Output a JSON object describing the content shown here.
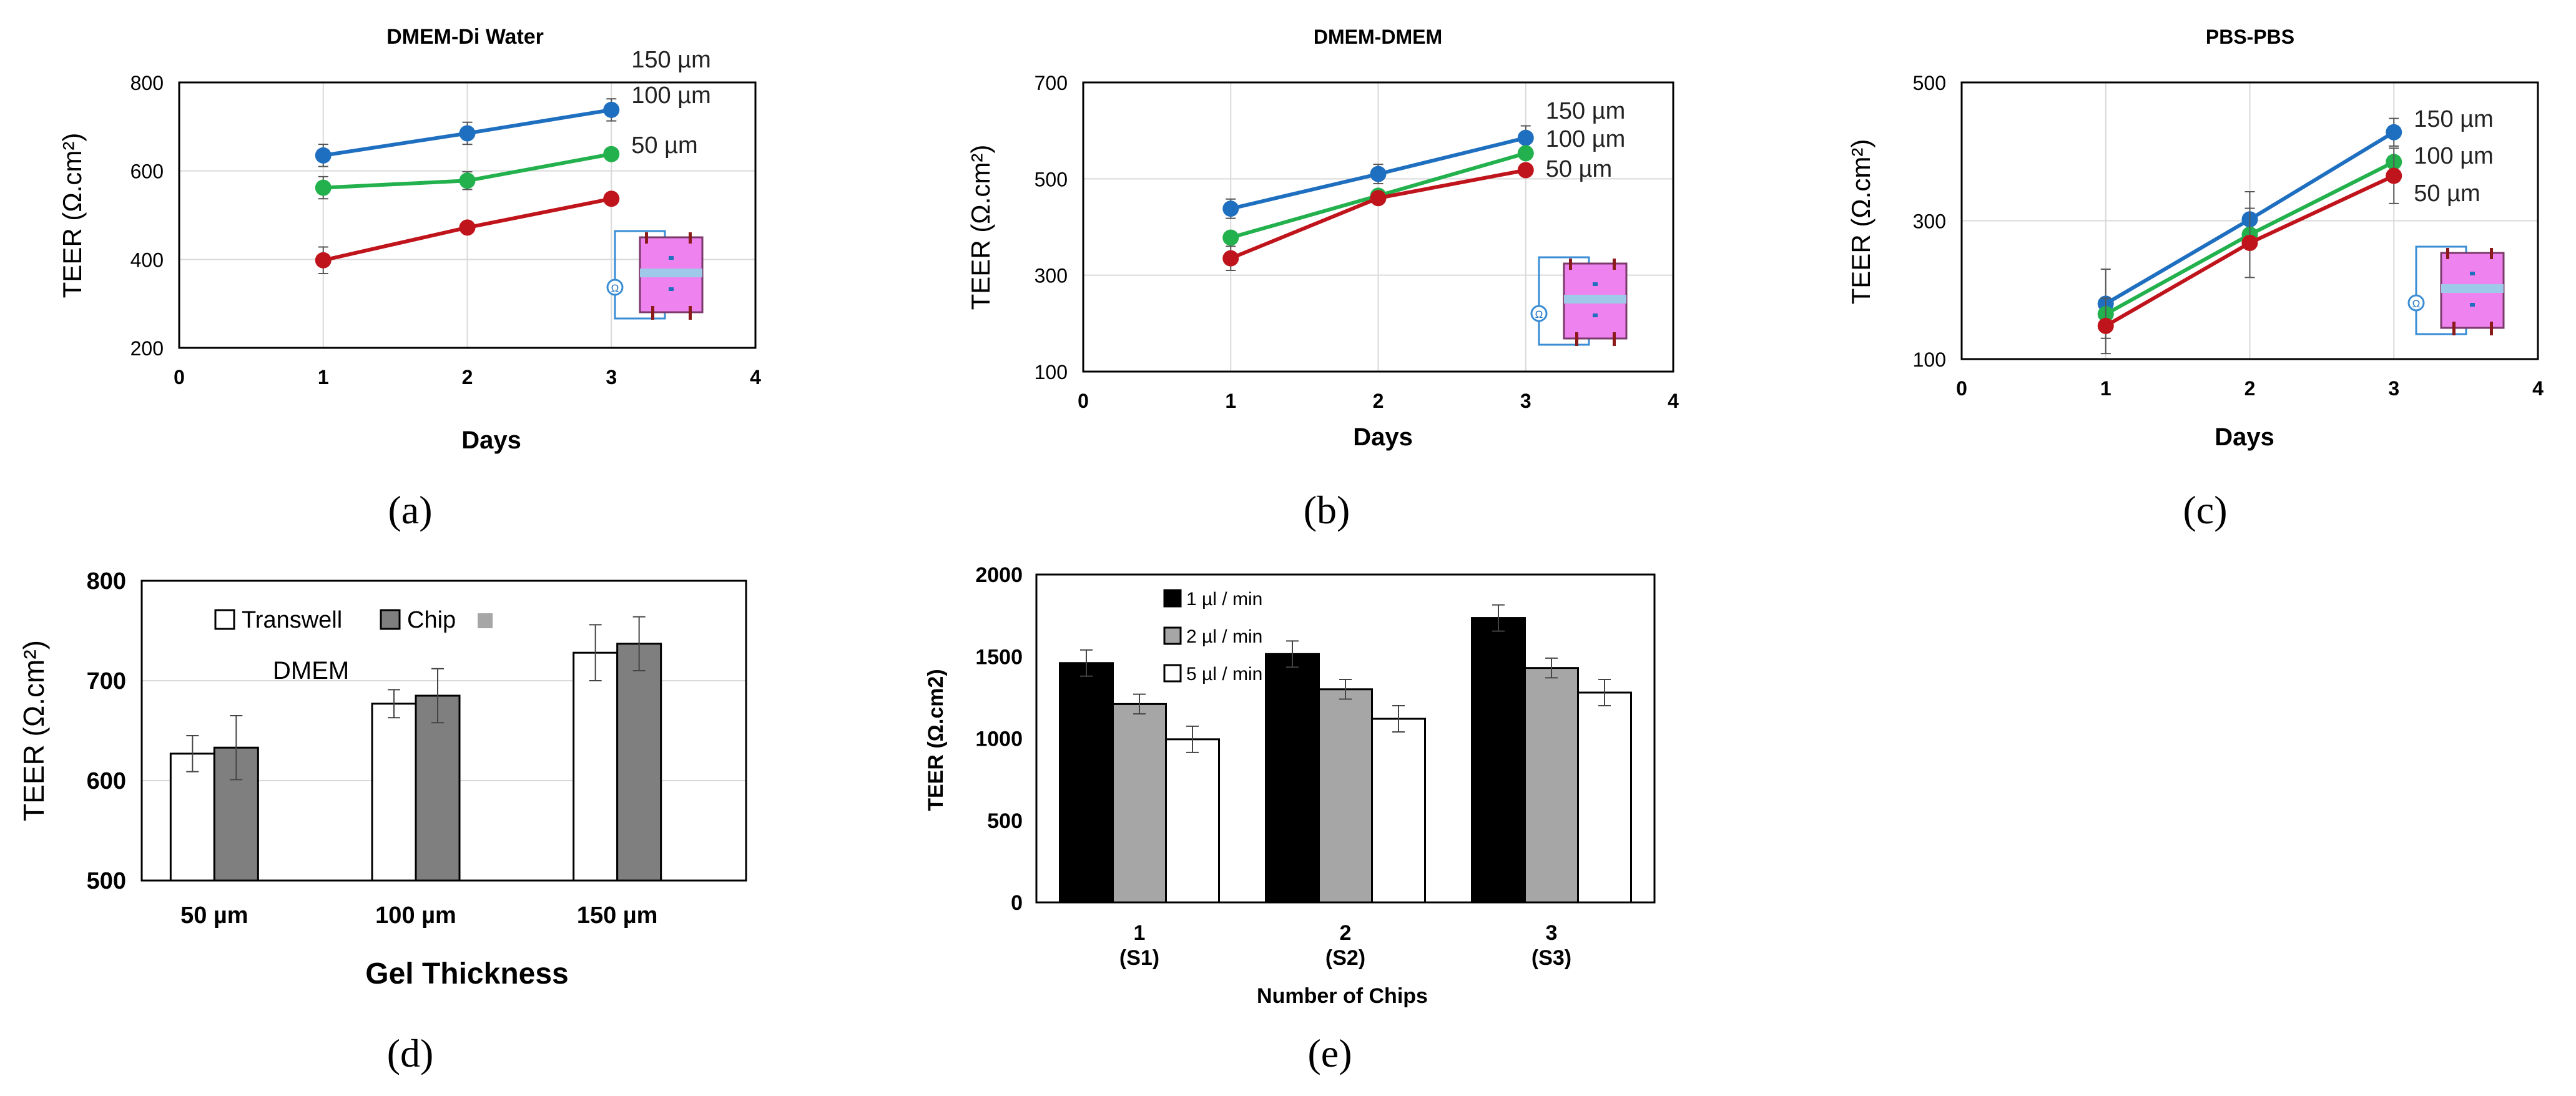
{
  "chart_data": [
    {
      "id": "a",
      "type": "line",
      "title": "DMEM-Di Water",
      "xlabel": "Days",
      "ylabel": "TEER (Ω.cm²)",
      "xlim": [
        0,
        4
      ],
      "ylim": [
        200,
        800
      ],
      "xticks": [
        "0",
        "1",
        "2",
        "3",
        "4"
      ],
      "yticks": [
        "200",
        "400",
        "600",
        "800"
      ],
      "grid": true,
      "x": [
        1,
        2,
        3
      ],
      "series": [
        {
          "name": "150 µm",
          "color": "#1f6fc0",
          "values": [
            635,
            685,
            738
          ],
          "errors": [
            25,
            25,
            25
          ]
        },
        {
          "name": "100 µm",
          "color": "#22b14c",
          "values": [
            562,
            578,
            638
          ],
          "errors": [
            25,
            20,
            0
          ]
        },
        {
          "name": "50 µm",
          "color": "#c0141c",
          "values": [
            398,
            472,
            537
          ],
          "errors": [
            30,
            0,
            0
          ]
        }
      ],
      "panel_label": "(a)",
      "inset": "chip-schematic"
    },
    {
      "id": "b",
      "type": "line",
      "title": "DMEM-DMEM",
      "xlabel": "Days",
      "ylabel": "TEER (Ω.cm²)",
      "xlim": [
        0,
        4
      ],
      "ylim": [
        100,
        700
      ],
      "xticks": [
        "0",
        "1",
        "2",
        "3",
        "4"
      ],
      "yticks": [
        "100",
        "300",
        "500",
        "700"
      ],
      "grid": true,
      "x": [
        1,
        2,
        3
      ],
      "series": [
        {
          "name": "150 µm",
          "color": "#1f6fc0",
          "values": [
            438,
            510,
            585
          ],
          "errors": [
            20,
            20,
            25
          ]
        },
        {
          "name": "100 µm",
          "color": "#22b14c",
          "values": [
            378,
            465,
            553
          ],
          "errors": [
            0,
            0,
            0
          ]
        },
        {
          "name": "50 µm",
          "color": "#c0141c",
          "values": [
            335,
            460,
            518
          ],
          "errors": [
            25,
            0,
            0
          ]
        }
      ],
      "panel_label": "(b)",
      "inset": "chip-schematic"
    },
    {
      "id": "c",
      "type": "line",
      "title": "PBS-PBS",
      "xlabel": "Days",
      "ylabel": "TEER (Ω.cm²)",
      "xlim": [
        0,
        4
      ],
      "ylim": [
        100,
        500
      ],
      "xticks": [
        "0",
        "1",
        "2",
        "3",
        "4"
      ],
      "yticks": [
        "100",
        "300",
        "500"
      ],
      "grid": true,
      "x": [
        1,
        2,
        3
      ],
      "series": [
        {
          "name": "150 µm",
          "color": "#1f6fc0",
          "values": [
            180,
            302,
            428
          ],
          "errors": [
            50,
            40,
            20
          ]
        },
        {
          "name": "100 µm",
          "color": "#22b14c",
          "values": [
            165,
            280,
            385
          ],
          "errors": [
            0,
            0,
            0
          ]
        },
        {
          "name": "50 µm",
          "color": "#c0141c",
          "values": [
            148,
            268,
            365
          ],
          "errors": [
            40,
            50,
            40
          ]
        }
      ],
      "panel_label": "(c)",
      "inset": "chip-schematic"
    },
    {
      "id": "d",
      "type": "bar",
      "title": "",
      "xlabel": "Gel Thickness",
      "ylabel": "TEER (Ω.cm²)",
      "ylim": [
        500,
        800
      ],
      "yticks": [
        "500",
        "600",
        "700",
        "800"
      ],
      "grid": true,
      "categories": [
        "50 µm",
        "100 µm",
        "150 µm"
      ],
      "series": [
        {
          "name": "Transwell",
          "color": "#ffffff",
          "values": [
            627,
            677,
            728
          ],
          "errors": [
            18,
            14,
            28
          ]
        },
        {
          "name": "Chip",
          "color": "#7f7f7f",
          "values": [
            633,
            685,
            737
          ],
          "errors": [
            32,
            27,
            27
          ]
        }
      ],
      "legend_extra_swatch_color": "#a6a6a6",
      "annotation": "DMEM",
      "panel_label": "(d)"
    },
    {
      "id": "e",
      "type": "bar",
      "title": "",
      "xlabel": "Number of Chips",
      "ylabel": "TEER (Ω.cm2)",
      "ylim": [
        0,
        2000
      ],
      "yticks": [
        "0",
        "500",
        "1000",
        "1500",
        "2000"
      ],
      "grid": false,
      "categories": [
        [
          "1",
          "(S1)"
        ],
        [
          "2",
          "(S2)"
        ],
        [
          "3",
          "(S3)"
        ]
      ],
      "series": [
        {
          "name": "1 µl / min",
          "color": "#000000",
          "values": [
            1460,
            1515,
            1735
          ],
          "errors": [
            80,
            80,
            80
          ]
        },
        {
          "name": "2 µl / min",
          "color": "#a6a6a6",
          "values": [
            1210,
            1300,
            1430
          ],
          "errors": [
            60,
            60,
            60
          ]
        },
        {
          "name": "5 µl / min",
          "color": "#ffffff",
          "values": [
            995,
            1120,
            1280
          ],
          "errors": [
            80,
            80,
            80
          ]
        }
      ],
      "panel_label": "(e)"
    }
  ]
}
